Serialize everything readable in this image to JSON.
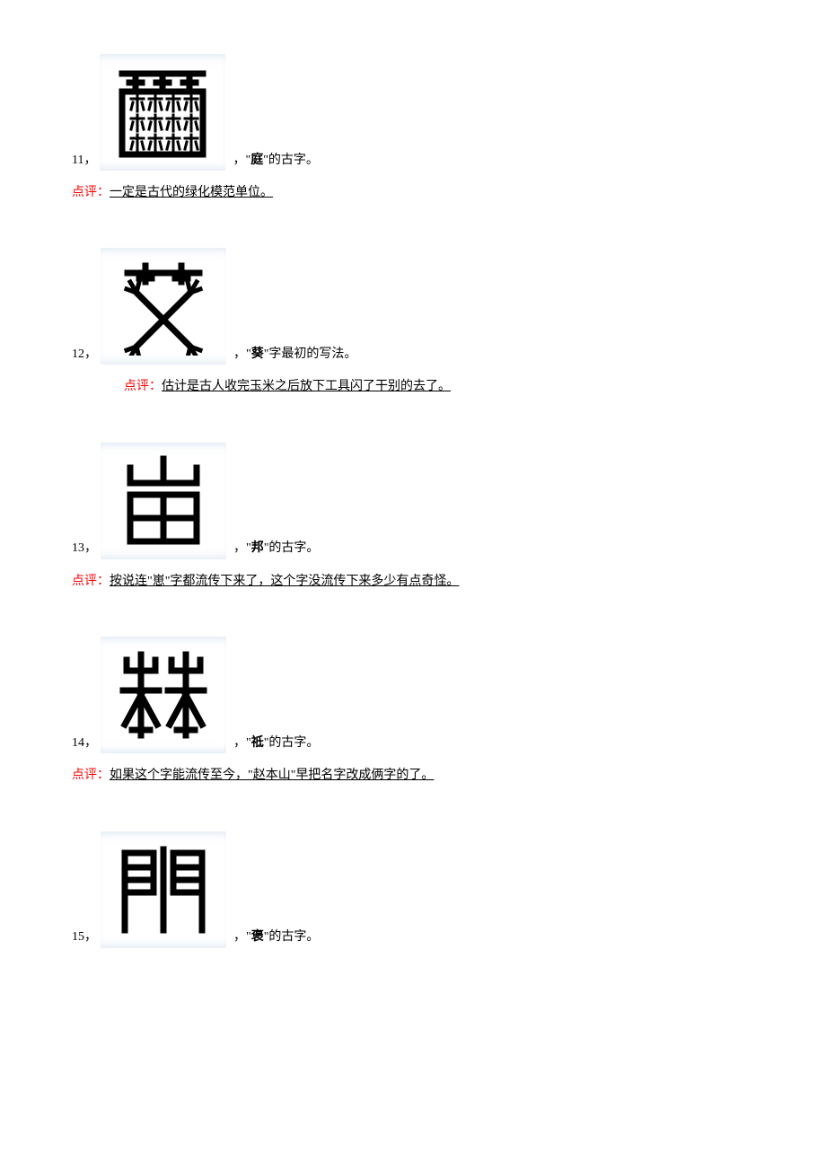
{
  "entries": [
    {
      "num": "11，",
      "char": "庭",
      "desc_suffix": "\"的古字。",
      "desc_prefix": "，\"",
      "comment_label": "点评：",
      "comment_text": "一定是古代的绿化模范单位。",
      "indented": false,
      "svg_key": "g11"
    },
    {
      "num": "12，",
      "char": "葵",
      "desc_suffix": "\"字最初的写法。",
      "desc_prefix": "，\"",
      "comment_label": "点评：",
      "comment_text": "估计是古人收完玉米之后放下工具闪了干别的去了。",
      "indented": true,
      "svg_key": "g12"
    },
    {
      "num": "13，",
      "char": "邦",
      "desc_suffix": "\"的古字。",
      "desc_prefix": "，\"",
      "comment_label": "点评：",
      "comment_text": "按说连\"崽\"字都流传下来了，这个字没流传下来多少有点奇怪。",
      "indented": false,
      "svg_key": "g13"
    },
    {
      "num": "14，",
      "char": "祗",
      "desc_suffix": "\"的古字。",
      "desc_prefix": "，\"",
      "comment_label": "点评：",
      "comment_text": "如果这个字能流传至今，\"赵本山\"早把名字改成俩字的了。",
      "indented": false,
      "svg_key": "g14"
    },
    {
      "num": "15，",
      "char": "褒",
      "desc_suffix": "\"的古字。",
      "desc_prefix": "，\"",
      "comment_label": "",
      "comment_text": "",
      "indented": false,
      "svg_key": "g15"
    }
  ],
  "glyph_stroke": "#000000",
  "glyph_stroke_width": 7
}
